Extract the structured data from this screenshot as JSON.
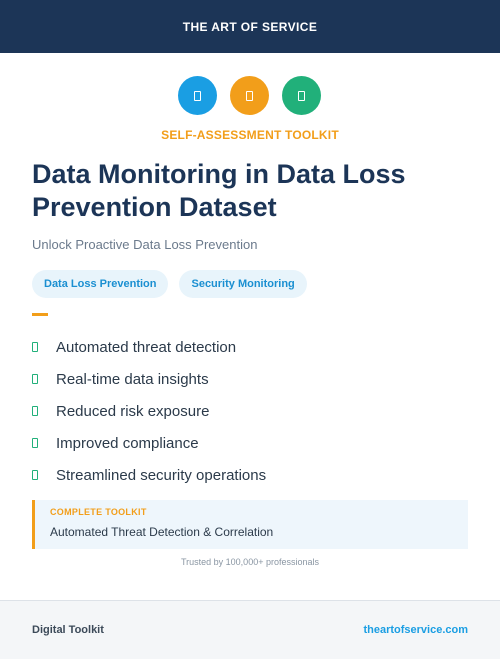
{
  "header": {
    "brand": "THE ART OF SERVICE"
  },
  "icons": [
    {
      "name": "document-icon",
      "color": "#1a9ee3"
    },
    {
      "name": "document-icon",
      "color": "#f29e1a"
    },
    {
      "name": "document-icon",
      "color": "#21b07a"
    }
  ],
  "kicker": "SELF-ASSESSMENT TOOLKIT",
  "title": "Data Monitoring in Data Loss Prevention Dataset",
  "subtitle": "Unlock Proactive Data Loss Prevention",
  "tags": [
    "Data Loss Prevention",
    "Security Monitoring"
  ],
  "benefits": [
    "Automated threat detection",
    "Real-time data insights",
    "Reduced risk exposure",
    "Improved compliance",
    "Streamlined security operations"
  ],
  "callout": {
    "label": "COMPLETE TOOLKIT",
    "text": "Automated Threat Detection & Correlation"
  },
  "trusted": "Trusted by 100,000+ professionals",
  "footer": {
    "left": "Digital Toolkit",
    "right": "theartofservice.com"
  },
  "colors": {
    "navy": "#1c3557",
    "accent_orange": "#f29e1a",
    "accent_blue": "#1a9ee3",
    "accent_green": "#21b07a"
  }
}
